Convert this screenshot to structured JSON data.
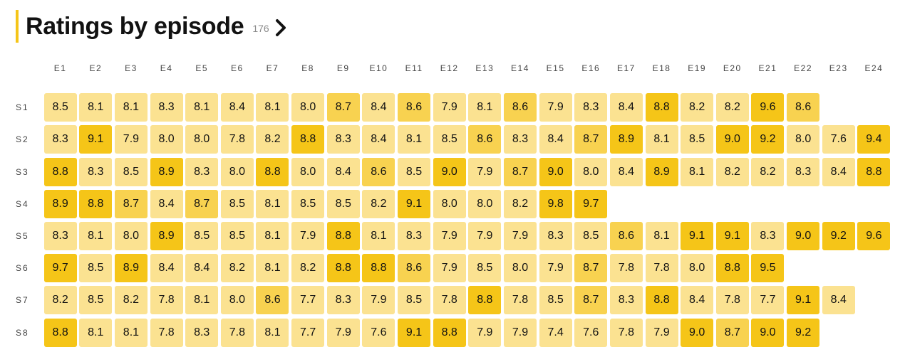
{
  "header": {
    "title": "Ratings by episode",
    "count": "176",
    "chevron_icon": "chevron-right-icon"
  },
  "colors": {
    "accent": "#f5c518",
    "tier_low": "#fbe291",
    "tier_mid": "#f8d250",
    "tier_high": "#f5c518"
  },
  "columns": [
    "E1",
    "E2",
    "E3",
    "E4",
    "E5",
    "E6",
    "E7",
    "E8",
    "E9",
    "E10",
    "E11",
    "E12",
    "E13",
    "E14",
    "E15",
    "E16",
    "E17",
    "E18",
    "E19",
    "E20",
    "E21",
    "E22",
    "E23",
    "E24"
  ],
  "seasons": [
    {
      "label": "S1",
      "ratings": [
        "8.5",
        "8.1",
        "8.1",
        "8.3",
        "8.1",
        "8.4",
        "8.1",
        "8.0",
        "8.7",
        "8.4",
        "8.6",
        "7.9",
        "8.1",
        "8.6",
        "7.9",
        "8.3",
        "8.4",
        "8.8",
        "8.2",
        "8.2",
        "9.6",
        "8.6"
      ]
    },
    {
      "label": "S2",
      "ratings": [
        "8.3",
        "9.1",
        "7.9",
        "8.0",
        "8.0",
        "7.8",
        "8.2",
        "8.8",
        "8.3",
        "8.4",
        "8.1",
        "8.5",
        "8.6",
        "8.3",
        "8.4",
        "8.7",
        "8.9",
        "8.1",
        "8.5",
        "9.0",
        "9.2",
        "8.0",
        "7.6",
        "9.4"
      ]
    },
    {
      "label": "S3",
      "ratings": [
        "8.8",
        "8.3",
        "8.5",
        "8.9",
        "8.3",
        "8.0",
        "8.8",
        "8.0",
        "8.4",
        "8.6",
        "8.5",
        "9.0",
        "7.9",
        "8.7",
        "9.0",
        "8.0",
        "8.4",
        "8.9",
        "8.1",
        "8.2",
        "8.2",
        "8.3",
        "8.4",
        "8.8"
      ]
    },
    {
      "label": "S4",
      "ratings": [
        "8.9",
        "8.8",
        "8.7",
        "8.4",
        "8.7",
        "8.5",
        "8.1",
        "8.5",
        "8.5",
        "8.2",
        "9.1",
        "8.0",
        "8.0",
        "8.2",
        "9.8",
        "9.7"
      ]
    },
    {
      "label": "S5",
      "ratings": [
        "8.3",
        "8.1",
        "8.0",
        "8.9",
        "8.5",
        "8.5",
        "8.1",
        "7.9",
        "8.8",
        "8.1",
        "8.3",
        "7.9",
        "7.9",
        "7.9",
        "8.3",
        "8.5",
        "8.6",
        "8.1",
        "9.1",
        "9.1",
        "8.3",
        "9.0",
        "9.2",
        "9.6"
      ]
    },
    {
      "label": "S6",
      "ratings": [
        "9.7",
        "8.5",
        "8.9",
        "8.4",
        "8.4",
        "8.2",
        "8.1",
        "8.2",
        "8.8",
        "8.8",
        "8.6",
        "7.9",
        "8.5",
        "8.0",
        "7.9",
        "8.7",
        "7.8",
        "7.8",
        "8.0",
        "8.8",
        "9.5"
      ]
    },
    {
      "label": "S7",
      "ratings": [
        "8.2",
        "8.5",
        "8.2",
        "7.8",
        "8.1",
        "8.0",
        "8.6",
        "7.7",
        "8.3",
        "7.9",
        "8.5",
        "7.8",
        "8.8",
        "7.8",
        "8.5",
        "8.7",
        "8.3",
        "8.8",
        "8.4",
        "7.8",
        "7.7",
        "9.1",
        "8.4"
      ]
    },
    {
      "label": "S8",
      "ratings": [
        "8.8",
        "8.1",
        "8.1",
        "7.8",
        "8.3",
        "7.8",
        "8.1",
        "7.7",
        "7.9",
        "7.6",
        "9.1",
        "8.8",
        "7.9",
        "7.9",
        "7.4",
        "7.6",
        "7.8",
        "7.9",
        "9.0",
        "8.7",
        "9.0",
        "9.2"
      ]
    }
  ]
}
